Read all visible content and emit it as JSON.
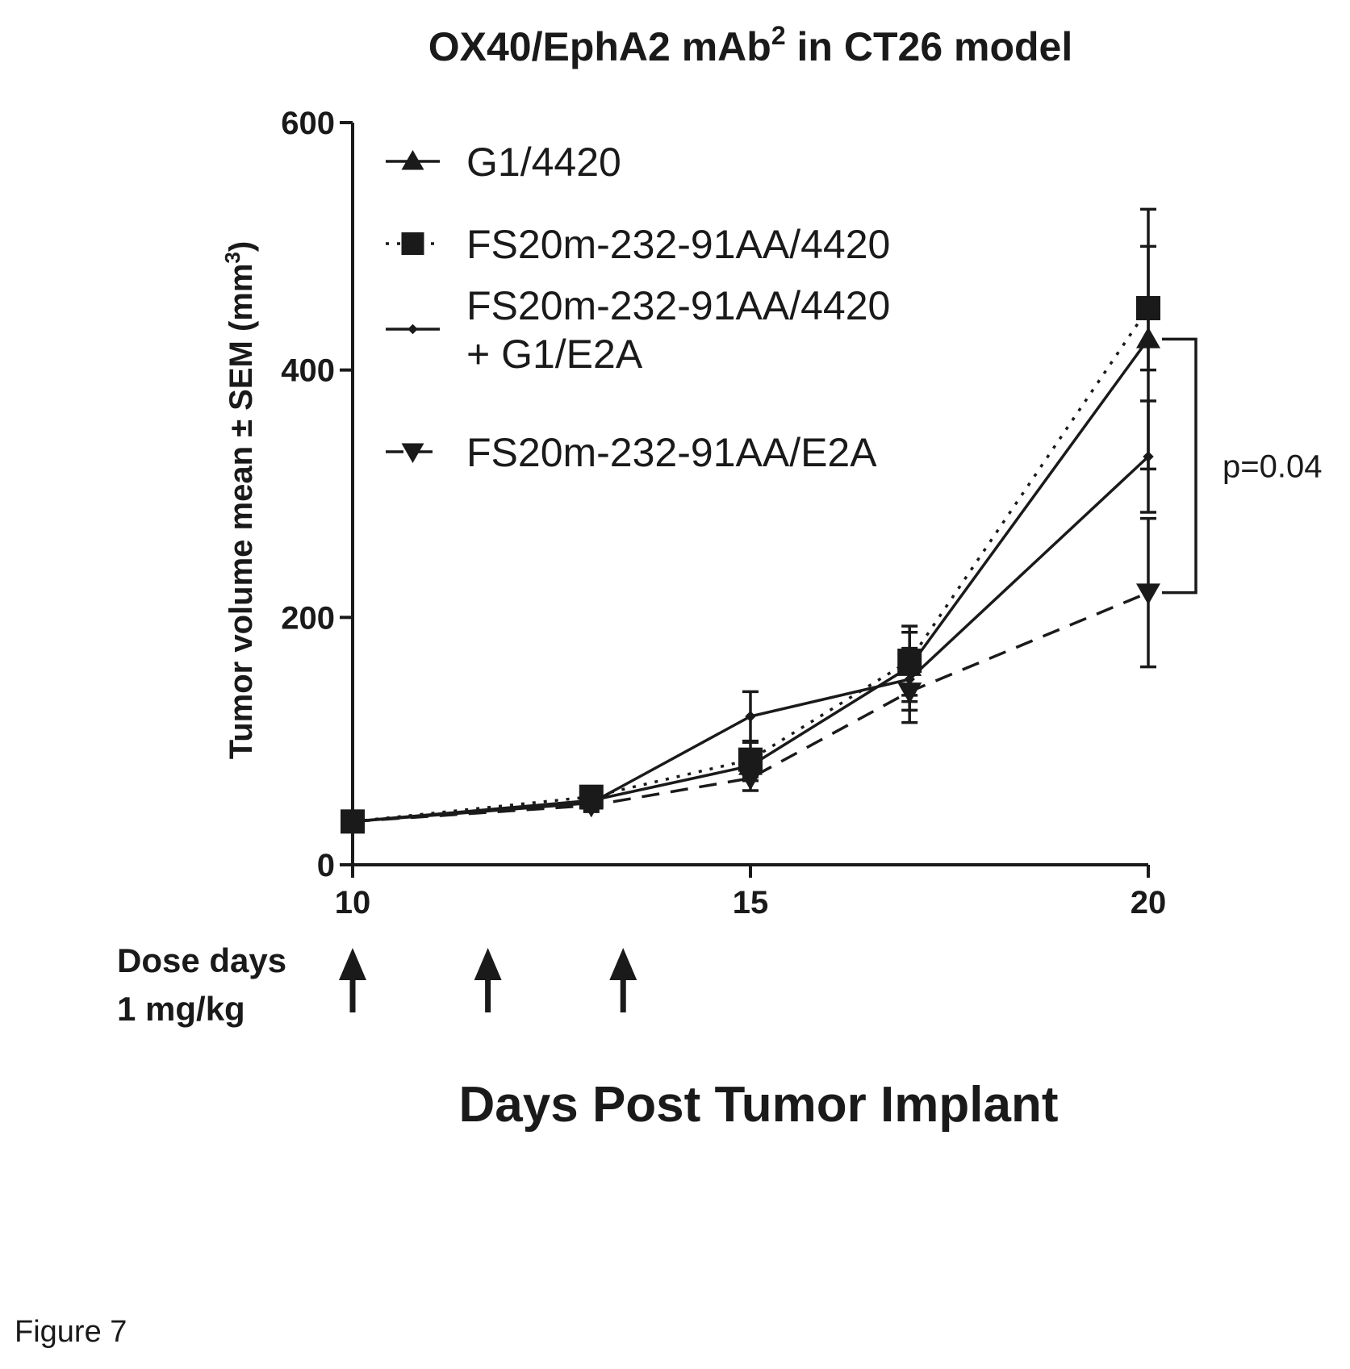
{
  "chart_data": {
    "type": "line",
    "title_main": "OX40/EphA2 mAb",
    "title_sup": "2",
    "title_rest": " in CT26 model",
    "ylabel_main": "Tumor volume mean ± SEM (mm",
    "ylabel_sup": "3",
    "ylabel_close": ")",
    "xlabel": "Days Post Tumor Implant",
    "xlim": [
      10,
      20
    ],
    "ylim": [
      0,
      600
    ],
    "x_ticks": [
      10,
      15,
      20
    ],
    "y_ticks": [
      0,
      200,
      400,
      600
    ],
    "x_tick_labels": [
      "10",
      "15",
      "20"
    ],
    "y_tick_labels": [
      "0",
      "200",
      "400",
      "600"
    ],
    "legend_position": "top-left",
    "series": [
      {
        "name": "G1/4420",
        "marker": "triangle-up",
        "dash": "solid",
        "x": [
          10,
          13,
          15,
          17,
          20
        ],
        "y": [
          35,
          52,
          80,
          160,
          425
        ],
        "err": [
          4,
          5,
          12,
          28,
          105
        ]
      },
      {
        "name": "FS20m-232-91AA/4420",
        "marker": "square",
        "dash": "dotted",
        "x": [
          10,
          13,
          15,
          17,
          20
        ],
        "y": [
          35,
          55,
          85,
          165,
          450
        ],
        "err": [
          4,
          5,
          14,
          28,
          50
        ]
      },
      {
        "name": "FS20m-232-91AA/4420",
        "name_line2": "+ G1/E2A",
        "marker": "diamond",
        "dash": "solid",
        "x": [
          10,
          13,
          15,
          17,
          20
        ],
        "y": [
          35,
          50,
          120,
          150,
          330
        ],
        "err": [
          4,
          5,
          20,
          25,
          45
        ]
      },
      {
        "name": "FS20m-232-91AA/E2A",
        "marker": "triangle-down",
        "dash": "dashed",
        "x": [
          10,
          13,
          15,
          17,
          20
        ],
        "y": [
          35,
          48,
          70,
          140,
          220
        ],
        "err": [
          4,
          5,
          10,
          25,
          60
        ]
      }
    ],
    "annotation": {
      "text": "p=0.04",
      "y_top": 425,
      "y_bottom": 220
    },
    "dose_label_line1": "Dose days",
    "dose_label_line2": "1 mg/kg",
    "dose_days": [
      10,
      11.7,
      13.4
    ]
  },
  "figure_label": "Figure 7"
}
